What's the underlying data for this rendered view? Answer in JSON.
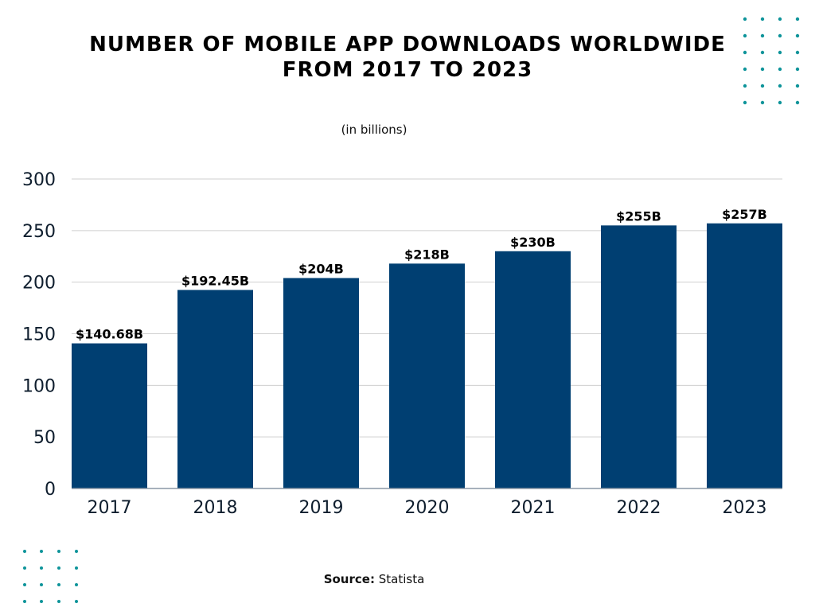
{
  "chart_data": {
    "type": "bar",
    "title_lines": [
      "NUMBER OF MOBILE APP DOWNLOADS WORLDWIDE",
      "FROM 2017 TO 2023"
    ],
    "subtitle": "(in billions)",
    "categories": [
      "2017",
      "2018",
      "2019",
      "2020",
      "2021",
      "2022",
      "2023"
    ],
    "values": [
      140.68,
      192.45,
      204,
      218,
      230,
      255,
      257
    ],
    "data_labels": [
      "$140.68B",
      "$192.45B",
      "$204B",
      "$218B",
      "$230B",
      "$255B",
      "$257B"
    ],
    "ylim": [
      0,
      300
    ],
    "yticks": [
      0,
      50,
      100,
      150,
      200,
      250,
      300
    ],
    "grid": true,
    "bar_color": "#003f72",
    "xlabel": "",
    "ylabel": ""
  },
  "source": {
    "label": "Source:",
    "value": "Statista"
  },
  "decoration": {
    "dot_color": "#0e949a"
  }
}
